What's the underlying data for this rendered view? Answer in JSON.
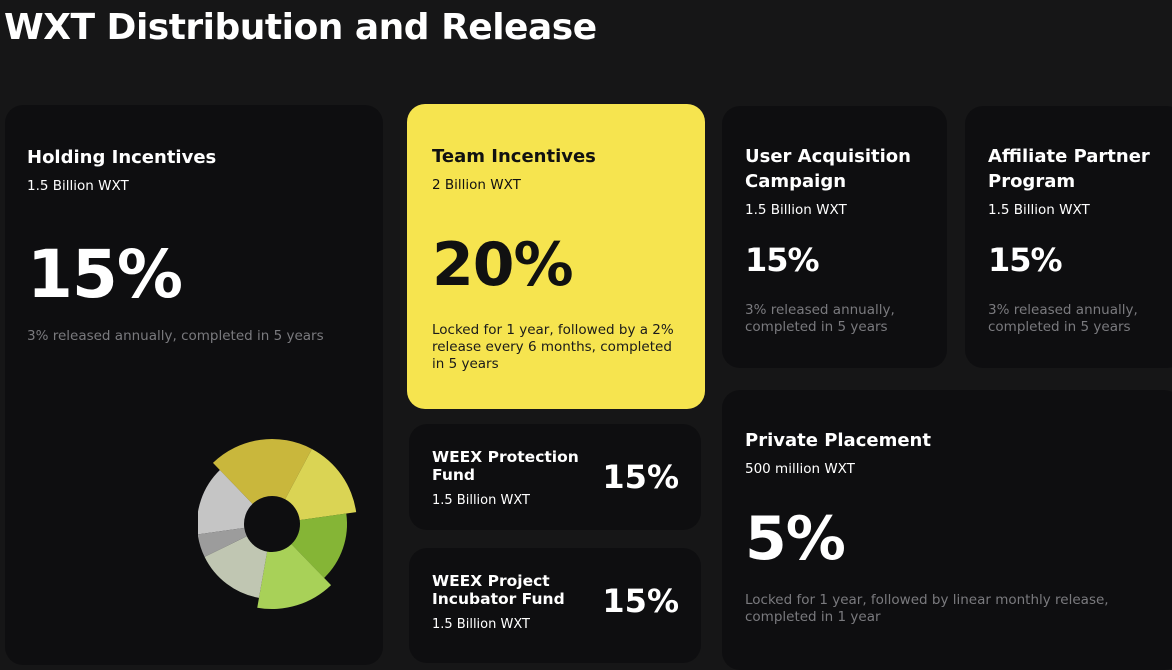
{
  "page": {
    "title": "WXT Distribution and Release"
  },
  "cards": {
    "holding": {
      "title": "Holding Incentives",
      "amount": "1.5 Billion WXT",
      "percent": "15%",
      "release": "3% released annually, completed in 5 years"
    },
    "team": {
      "title": "Team Incentives",
      "amount": "2 Billion WXT",
      "percent": "20%",
      "release": "Locked for 1 year, followed by a 2% release every 6 months, completed in 5 years"
    },
    "user_acquisition": {
      "title": "User Acquisition Campaign",
      "amount": "1.5 Billion WXT",
      "percent": "15%",
      "release": "3% released annually, completed in 5 years"
    },
    "affiliate": {
      "title": "Affiliate Partner Program",
      "amount": "1.5 Billion WXT",
      "percent": "15%",
      "release": "3% released annually, completed in 5 years"
    },
    "protection_fund": {
      "title": "WEEX Protection Fund",
      "amount": "1.5 Billion WXT",
      "percent": "15%"
    },
    "incubator_fund": {
      "title": "WEEX Project Incubator Fund",
      "amount": "1.5 Billion WXT",
      "percent": "15%"
    },
    "private_placement": {
      "title": "Private Placement",
      "amount": "500 million WXT",
      "percent": "5%",
      "release": "Locked for 1 year, followed by linear monthly release, completed in 1 year"
    }
  },
  "colors": {
    "background": "#161617",
    "card": "#0e0e10",
    "accent_yellow": "#f6e44f",
    "muted_text": "#7a7a7e"
  },
  "chart_data": {
    "type": "pie",
    "style": "donut",
    "values": [
      15,
      20,
      15,
      15,
      15,
      15,
      5
    ],
    "colors": [
      "#d5d5d5",
      "#d9c640",
      "#ece55a",
      "#8fc33a",
      "#b5e25e",
      "#cfd6c0",
      "#a8a8a8"
    ]
  }
}
